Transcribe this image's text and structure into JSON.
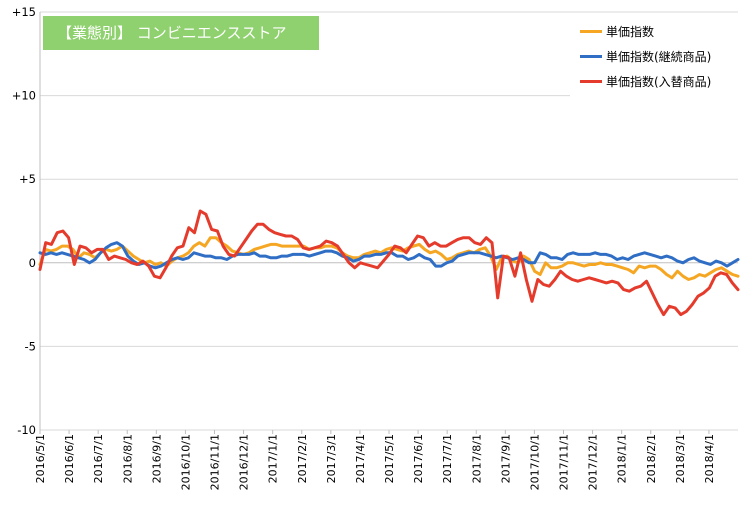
{
  "chart_data": {
    "type": "line",
    "title": "【業態別】 コンビニエンスストア",
    "xlabel": "",
    "ylabel": "",
    "ylim": [
      -10,
      15
    ],
    "yticks": [
      15,
      10,
      5,
      0,
      -5,
      -10
    ],
    "ytick_labels": [
      "+15",
      "+10",
      "+5",
      "0",
      "-5",
      "-10"
    ],
    "grid": "horizontal",
    "legend_position": "top-right",
    "x_tick_labels": [
      "2016/5/1",
      "2016/6/1",
      "2016/7/1",
      "2016/8/1",
      "2016/9/1",
      "2016/10/1",
      "2016/11/1",
      "2016/12/1",
      "2017/1/1",
      "2017/2/1",
      "2017/3/1",
      "2017/4/1",
      "2017/5/1",
      "2017/6/1",
      "2017/7/1",
      "2017/8/1",
      "2017/9/1",
      "2017/10/1",
      "2017/11/1",
      "2017/12/1",
      "2018/1/1",
      "2018/2/1",
      "2018/3/1",
      "2018/4/1"
    ],
    "x_start": "2016/5/1",
    "x_end": "2018/5/1",
    "series": [
      {
        "name": "単価指数",
        "color": "#f5a623",
        "values": [
          -0.1,
          0.8,
          0.7,
          0.8,
          1.0,
          1.0,
          0.8,
          0.3,
          0.6,
          0.5,
          0.3,
          0.6,
          0.8,
          0.7,
          0.8,
          1.0,
          0.7,
          0.4,
          0.2,
          0.0,
          0.1,
          -0.1,
          0.0,
          -0.2,
          0.1,
          0.3,
          0.4,
          0.6,
          1.0,
          1.2,
          1.0,
          1.5,
          1.5,
          1.2,
          1.0,
          0.7,
          0.6,
          0.5,
          0.6,
          0.8,
          0.9,
          1.0,
          1.1,
          1.1,
          1.0,
          1.0,
          1.0,
          1.0,
          1.0,
          0.8,
          0.9,
          0.9,
          1.0,
          1.0,
          0.9,
          0.6,
          0.4,
          0.3,
          0.3,
          0.5,
          0.6,
          0.7,
          0.6,
          0.8,
          0.9,
          0.8,
          0.7,
          0.9,
          1.0,
          1.1,
          0.8,
          0.6,
          0.7,
          0.5,
          0.2,
          0.3,
          0.5,
          0.6,
          0.7,
          0.6,
          0.8,
          0.9,
          0.4,
          -0.4,
          0.3,
          0.4,
          0.1,
          0.0,
          0.4,
          0.2,
          -0.5,
          -0.7,
          0.0,
          -0.3,
          -0.3,
          -0.2,
          0.0,
          0.0,
          -0.1,
          -0.2,
          -0.1,
          -0.1,
          0.0,
          -0.1,
          -0.1,
          -0.2,
          -0.3,
          -0.4,
          -0.6,
          -0.2,
          -0.3,
          -0.2,
          -0.2,
          -0.4,
          -0.7,
          -0.9,
          -0.5,
          -0.8,
          -1.0,
          -0.9,
          -0.7,
          -0.8,
          -0.6,
          -0.4,
          -0.3,
          -0.5,
          -0.7,
          -0.8
        ],
        "x_index_step": "even"
      },
      {
        "name": "単価指数(継続商品)",
        "color": "#2f6ec4",
        "values": [
          0.6,
          0.5,
          0.6,
          0.5,
          0.6,
          0.5,
          0.4,
          0.3,
          0.2,
          0.0,
          0.2,
          0.6,
          0.9,
          1.1,
          1.2,
          1.0,
          0.4,
          0.1,
          -0.1,
          0.0,
          -0.2,
          -0.3,
          -0.2,
          0.0,
          0.2,
          0.3,
          0.2,
          0.3,
          0.6,
          0.5,
          0.4,
          0.4,
          0.3,
          0.3,
          0.2,
          0.4,
          0.5,
          0.5,
          0.5,
          0.6,
          0.4,
          0.4,
          0.3,
          0.3,
          0.4,
          0.4,
          0.5,
          0.5,
          0.5,
          0.4,
          0.5,
          0.6,
          0.7,
          0.7,
          0.6,
          0.4,
          0.3,
          0.1,
          0.2,
          0.4,
          0.4,
          0.5,
          0.5,
          0.6,
          0.6,
          0.4,
          0.4,
          0.2,
          0.3,
          0.5,
          0.3,
          0.2,
          -0.2,
          -0.2,
          0.0,
          0.1,
          0.4,
          0.5,
          0.6,
          0.6,
          0.6,
          0.5,
          0.4,
          0.3,
          0.4,
          0.3,
          0.2,
          0.3,
          0.2,
          0.0,
          0.0,
          0.6,
          0.5,
          0.3,
          0.3,
          0.2,
          0.5,
          0.6,
          0.5,
          0.5,
          0.5,
          0.6,
          0.5,
          0.5,
          0.4,
          0.2,
          0.3,
          0.2,
          0.4,
          0.5,
          0.6,
          0.5,
          0.4,
          0.3,
          0.4,
          0.3,
          0.1,
          0.0,
          0.2,
          0.3,
          0.1,
          0.0,
          -0.1,
          0.1,
          0.0,
          -0.2,
          0.0,
          0.2
        ],
        "x_index_step": "even"
      },
      {
        "name": "単価指数(入替商品)",
        "color": "#e53b2c",
        "values": [
          -0.4,
          1.2,
          1.1,
          1.8,
          1.9,
          1.5,
          -0.1,
          1.0,
          0.9,
          0.6,
          0.8,
          0.8,
          0.2,
          0.4,
          0.3,
          0.2,
          0.0,
          -0.1,
          0.1,
          -0.2,
          -0.8,
          -0.9,
          -0.3,
          0.4,
          0.9,
          1.0,
          2.1,
          1.8,
          3.1,
          2.9,
          2.0,
          1.9,
          1.0,
          0.5,
          0.4,
          0.9,
          1.4,
          1.9,
          2.3,
          2.3,
          2.0,
          1.8,
          1.7,
          1.6,
          1.6,
          1.4,
          0.9,
          0.8,
          0.9,
          1.0,
          1.3,
          1.2,
          1.0,
          0.5,
          0.0,
          -0.3,
          0.0,
          -0.1,
          -0.2,
          -0.3,
          0.1,
          0.5,
          1.0,
          0.9,
          0.6,
          1.1,
          1.6,
          1.5,
          1.0,
          1.2,
          1.0,
          1.0,
          1.2,
          1.4,
          1.5,
          1.5,
          1.2,
          1.1,
          1.5,
          1.2,
          -2.1,
          0.4,
          0.3,
          -0.8,
          0.6,
          -1.0,
          -2.3,
          -1.0,
          -1.3,
          -1.4,
          -1.0,
          -0.5,
          -0.8,
          -1.0,
          -1.1,
          -1.0,
          -0.9,
          -1.0,
          -1.1,
          -1.2,
          -1.1,
          -1.2,
          -1.6,
          -1.7,
          -1.5,
          -1.4,
          -1.1,
          -1.8,
          -2.5,
          -3.1,
          -2.6,
          -2.7,
          -3.1,
          -2.9,
          -2.5,
          -2.0,
          -1.8,
          -1.5,
          -0.8,
          -0.6,
          -0.7,
          -1.2,
          -1.6
        ],
        "x_index_step": "even"
      }
    ]
  }
}
